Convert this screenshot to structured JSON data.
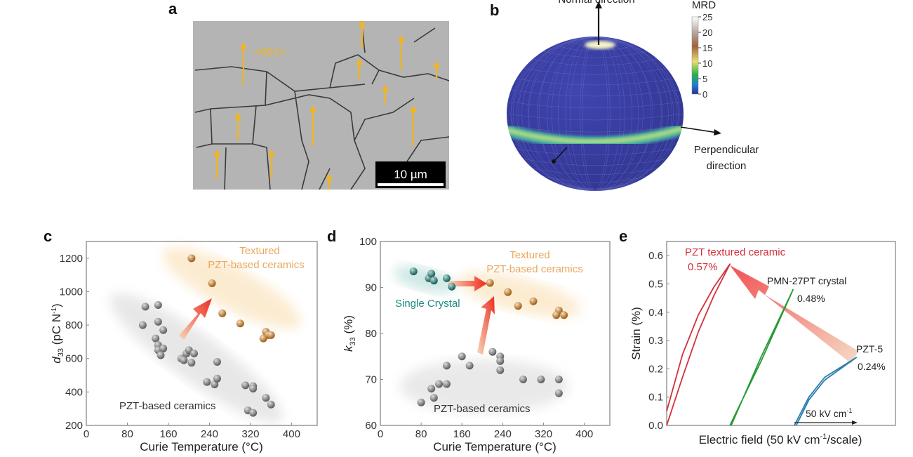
{
  "panels": {
    "a": {
      "label": "a",
      "annotation": "<001>",
      "scale_bar": "10 µm",
      "arrow_color": "#f2b51e"
    },
    "b": {
      "label": "b",
      "top_label": "Normal direction",
      "side_label_line1": "Perpendicular",
      "side_label_line2": "direction",
      "colorbar": {
        "title": "MRD",
        "ticks": [
          "25",
          "20",
          "15",
          "10",
          "5",
          "0"
        ],
        "range": [
          0,
          25
        ]
      },
      "sphere_color": "#3b3fa6"
    },
    "c": {
      "label": "c"
    },
    "d": {
      "label": "d"
    },
    "e": {
      "label": "e"
    }
  },
  "chart_data": [
    {
      "panel": "c",
      "type": "scatter",
      "xlabel": "Curie Temperature (°C)",
      "ylabel": "d33 (pC N-1)",
      "ylabel_main": "d",
      "ylabel_sub": "33",
      "ylabel_rest": " (pC N",
      "ylabel_sup": "-1",
      "ylabel_end": ")",
      "xlim": [
        0,
        450
      ],
      "ylim": [
        200,
        1300
      ],
      "xticks": [
        "0",
        "80",
        "160",
        "240",
        "320",
        "400"
      ],
      "yticks": [
        "200",
        "400",
        "600",
        "800",
        "1000",
        "1200"
      ],
      "grid": false,
      "annotations": {
        "textured_1": "Textured",
        "textured_2": "PZT-based ceramics",
        "pzt": "PZT-based ceramics"
      },
      "series": [
        {
          "name": "PZT-based ceramics",
          "color": "#8a8a8a",
          "x": [
            115,
            140,
            110,
            140,
            150,
            135,
            140,
            140,
            150,
            145,
            185,
            195,
            200,
            210,
            190,
            205,
            255,
            235,
            250,
            255,
            310,
            325,
            325,
            350,
            360,
            315,
            325
          ],
          "y": [
            910,
            920,
            800,
            820,
            770,
            720,
            680,
            650,
            660,
            620,
            600,
            630,
            650,
            630,
            590,
            575,
            580,
            460,
            445,
            480,
            440,
            435,
            420,
            365,
            325,
            290,
            275
          ]
        },
        {
          "name": "Textured PZT-based ceramics",
          "color": "#f08c1a",
          "x": [
            205,
            245,
            265,
            300,
            350,
            355,
            345,
            360
          ],
          "y": [
            1200,
            1050,
            870,
            810,
            760,
            740,
            720,
            740
          ]
        }
      ]
    },
    {
      "panel": "d",
      "type": "scatter",
      "xlabel": "Curie Temperature (°C)",
      "ylabel": "k33 (%)",
      "ylabel_main": "k",
      "ylabel_sub": "33",
      "ylabel_rest": " (%)",
      "xlim": [
        0,
        450
      ],
      "ylim": [
        60,
        100
      ],
      "xticks": [
        "0",
        "80",
        "160",
        "240",
        "320",
        "400"
      ],
      "yticks": [
        "60",
        "70",
        "80",
        "90",
        "100"
      ],
      "grid": false,
      "annotations": {
        "textured_1": "Textured",
        "textured_2": "PZT-based ceramics",
        "single": "Single Crystal",
        "pzt": "PZT-based ceramics"
      },
      "series": [
        {
          "name": "Single Crystal",
          "color": "#1a8a80",
          "x": [
            65,
            95,
            100,
            105,
            130,
            140
          ],
          "y": [
            93.5,
            92,
            93,
            91.5,
            92,
            90.2
          ]
        },
        {
          "name": "Textured PZT-based ceramics",
          "color": "#f08c1a",
          "x": [
            215,
            250,
            270,
            300,
            350,
            345,
            360
          ],
          "y": [
            91,
            89,
            86,
            87,
            85,
            84,
            84
          ]
        },
        {
          "name": "PZT-based ceramics",
          "color": "#8a8a8a",
          "x": [
            80,
            100,
            105,
            115,
            130,
            130,
            160,
            175,
            220,
            235,
            235,
            235,
            280,
            315,
            350,
            350
          ],
          "y": [
            65,
            68,
            66,
            69,
            69,
            73,
            75,
            73,
            76,
            75,
            74,
            72,
            70,
            70,
            70,
            67
          ]
        }
      ]
    },
    {
      "panel": "e",
      "type": "line",
      "xlabel": "Electric field (50 kV cm-1/scale)",
      "xlabel_pre": "Electric field (50 kV cm",
      "xlabel_sup": "-1",
      "xlabel_post": "/scale)",
      "ylabel": "Strain (%)",
      "xlim": [
        0,
        3.62
      ],
      "ylim": [
        0,
        0.65
      ],
      "yticks": [
        "0.0",
        "0.1",
        "0.2",
        "0.3",
        "0.4",
        "0.5",
        "0.6"
      ],
      "grid": false,
      "scale_bar": {
        "pre": "50 kV cm",
        "sup": "-1"
      },
      "series": [
        {
          "name": "PZT textured ceramic",
          "value_label": "0.57%",
          "color": "#d3303a",
          "x": [
            0,
            0.25,
            0.5,
            0.75,
            1.0,
            0.75,
            0.5,
            0.25,
            0
          ],
          "y": [
            0,
            0.17,
            0.33,
            0.46,
            0.57,
            0.49,
            0.39,
            0.25,
            0.05
          ]
        },
        {
          "name": "PMN-27PT crystal",
          "value_label": "0.48%",
          "color": "#2a9a35",
          "x": [
            1.0,
            1.5,
            2.0,
            1.5,
            1.02
          ],
          "y": [
            0,
            0.23,
            0.48,
            0.245,
            0
          ]
        },
        {
          "name": "PZT-5",
          "value_label": "0.24%",
          "color": "#2a7fb0",
          "x": [
            2.02,
            2.25,
            2.5,
            3.0,
            2.5,
            2.25,
            2.05
          ],
          "y": [
            0,
            0.1,
            0.17,
            0.24,
            0.16,
            0.09,
            0
          ]
        }
      ]
    }
  ]
}
